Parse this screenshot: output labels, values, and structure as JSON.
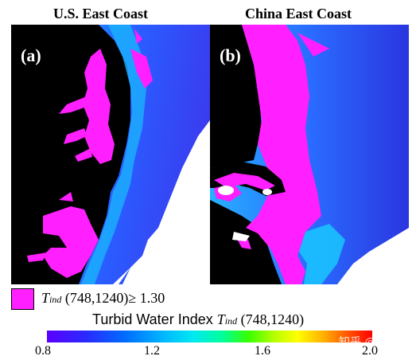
{
  "titles": {
    "left": "U.S. East Coast",
    "right": "China East Coast"
  },
  "panels": {
    "left_label": "(a)",
    "right_label": "(b)"
  },
  "legend": {
    "symbol": "T",
    "subscript": "ind",
    "text": "(748,1240)≥ 1.30",
    "color": "#ff1fff"
  },
  "colorbar": {
    "title": "Turbid Water Index",
    "symbol": "T",
    "subscript": "ind",
    "bands": "(748,1240)",
    "ticks": [
      "0.8",
      "1.2",
      "1.6",
      "2.0"
    ]
  },
  "watermark": "知乎 @秃噜"
}
